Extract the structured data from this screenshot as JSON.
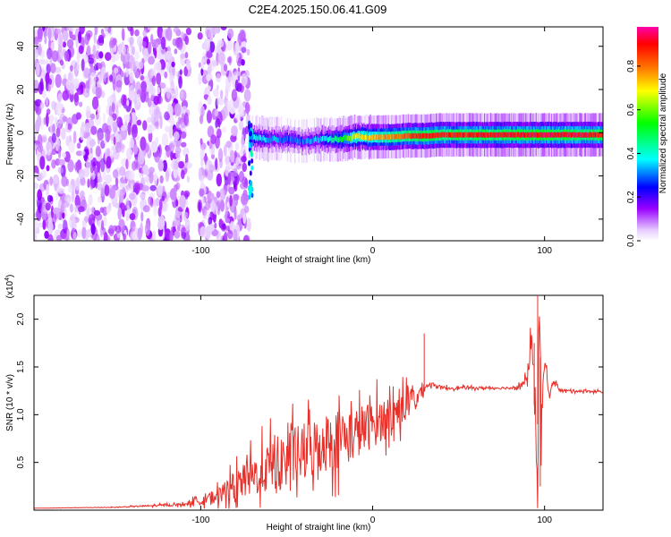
{
  "title": "C2E4.2025.150.06.41.G09",
  "chart_data": [
    {
      "type": "heatmap",
      "xlabel": "Height of straight line (km)",
      "ylabel": "Frequency (Hz)",
      "xlim": [
        -197,
        134
      ],
      "ylim": [
        -50,
        49
      ],
      "xticks": [
        -100,
        0,
        100
      ],
      "yticks": [
        -40,
        -20,
        0,
        20,
        40
      ],
      "colorbar": {
        "label": "Normalized spectral amplitude",
        "range": [
          0,
          0.98
        ],
        "ticks": [
          "0.0",
          "0.2",
          "0.4",
          "0.6",
          "0.8"
        ],
        "colors": [
          "#ffffff",
          "#e6ccff",
          "#9900ff",
          "#0000ff",
          "#00ffff",
          "#00ff00",
          "#ffff00",
          "#ff8000",
          "#ff0000",
          "#ff00aa"
        ]
      },
      "noise_region_x": [
        -197,
        -72
      ],
      "gap_x": [
        -107,
        -101
      ],
      "ridge": {
        "x": [
          -72,
          -60,
          -50,
          -40,
          -30,
          -20,
          -10,
          0,
          10,
          20,
          30,
          40,
          60,
          80,
          100,
          120,
          134
        ],
        "freq": [
          -2,
          -3,
          -3,
          -4,
          -3,
          -3,
          -2,
          -2,
          -2,
          -1.5,
          -1.5,
          -1,
          -1,
          -1,
          -1,
          -1,
          -1
        ],
        "amplitude": [
          0.4,
          0.35,
          0.3,
          0.3,
          0.35,
          0.5,
          0.7,
          0.75,
          0.8,
          0.85,
          0.9,
          0.9,
          0.9,
          0.92,
          0.95,
          0.93,
          0.9
        ]
      }
    },
    {
      "type": "line",
      "xlabel": "Height of straight line (km)",
      "ylabel": "SNR (10 * v/v)",
      "scale_label": "(x10",
      "scale_exp": "4",
      "xlim": [
        -197,
        134
      ],
      "ylim": [
        0,
        2.25
      ],
      "xticks": [
        -100,
        0,
        100
      ],
      "yticks": [
        0.5,
        1.0,
        1.5,
        2.0
      ],
      "series": [
        {
          "color": "#e8302a",
          "x": [
            -197,
            -150,
            -110,
            -90,
            -80,
            -70,
            -60,
            -50,
            -40,
            -30,
            -20,
            -10,
            0,
            10,
            20,
            27,
            30,
            35,
            40,
            50,
            60,
            70,
            80,
            85,
            90,
            93,
            96,
            97,
            98,
            100,
            103,
            105,
            110,
            120,
            134
          ],
          "y": [
            0.02,
            0.03,
            0.06,
            0.15,
            0.25,
            0.35,
            0.45,
            0.55,
            0.6,
            0.7,
            0.75,
            0.8,
            0.9,
            1.0,
            1.1,
            1.2,
            1.3,
            1.32,
            1.28,
            1.28,
            1.28,
            1.28,
            1.28,
            1.3,
            1.35,
            1.8,
            0.3,
            2.25,
            0.9,
            1.5,
            1.2,
            1.35,
            1.25,
            1.25,
            1.24
          ],
          "noise": [
            0.0,
            0.005,
            0.02,
            0.12,
            0.22,
            0.3,
            0.38,
            0.42,
            0.45,
            0.45,
            0.45,
            0.4,
            0.35,
            0.3,
            0.25,
            0.2,
            0.05,
            0.03,
            0.03,
            0.02,
            0.02,
            0.02,
            0.02,
            0.03,
            0.1,
            0.3,
            0.5,
            0.5,
            0.4,
            0.2,
            0.05,
            0.03,
            0.02,
            0.02,
            0.02
          ]
        }
      ]
    }
  ]
}
